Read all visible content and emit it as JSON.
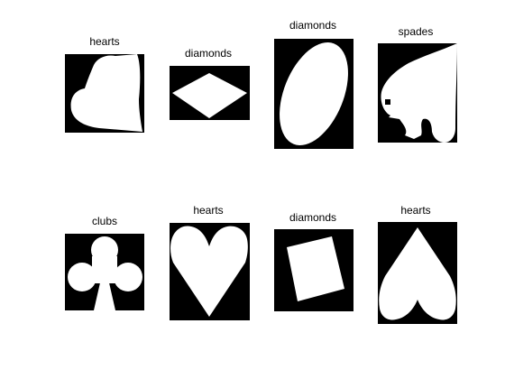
{
  "figure": {
    "panels": [
      {
        "label": "hearts"
      },
      {
        "label": "diamonds"
      },
      {
        "label": "diamonds"
      },
      {
        "label": "spades"
      },
      {
        "label": "clubs"
      },
      {
        "label": "hearts"
      },
      {
        "label": "diamonds"
      },
      {
        "label": "hearts"
      }
    ]
  }
}
